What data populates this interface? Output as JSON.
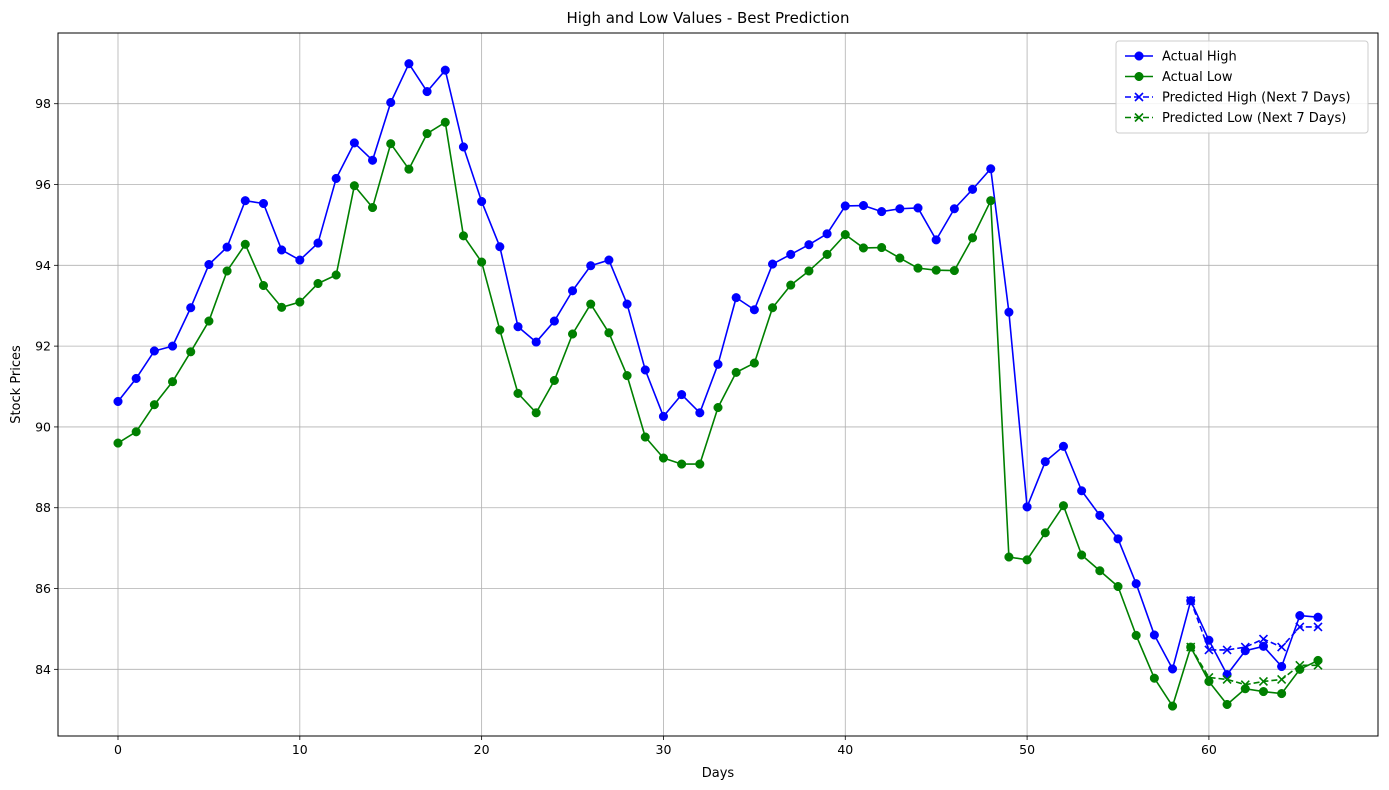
{
  "chart_data": {
    "type": "line",
    "title": "High and Low Values - Best Prediction",
    "xlabel": "Days",
    "ylabel": "Stock Prices",
    "xlim": [
      -3.3,
      69.3
    ],
    "ylim": [
      82.35,
      99.75
    ],
    "xticks": [
      0,
      10,
      20,
      30,
      40,
      50,
      60
    ],
    "yticks": [
      84,
      86,
      88,
      90,
      92,
      94,
      96,
      98
    ],
    "grid": true,
    "legend_position": "top-right",
    "series": [
      {
        "name": "Actual High",
        "color": "#0000ff",
        "marker": "circle",
        "linestyle": "solid",
        "x_start": 0,
        "values": [
          90.63,
          91.2,
          91.88,
          92.0,
          92.95,
          94.02,
          94.45,
          95.6,
          95.53,
          94.38,
          94.13,
          94.55,
          96.15,
          97.03,
          96.6,
          98.03,
          98.99,
          98.3,
          98.83,
          96.93,
          95.58,
          94.46,
          92.48,
          92.1,
          92.62,
          93.37,
          93.99,
          94.13,
          93.04,
          91.41,
          90.26,
          90.8,
          90.35,
          91.55,
          93.2,
          92.9,
          94.03,
          94.27,
          94.51,
          94.78,
          95.47,
          95.48,
          95.33,
          95.4,
          95.42,
          94.63,
          95.4,
          95.88,
          96.39,
          92.84,
          88.02,
          89.14,
          89.52,
          88.42,
          87.81,
          87.23,
          86.12,
          84.85,
          84.01,
          85.7,
          84.72,
          83.87,
          84.46,
          84.57,
          84.07,
          85.33,
          85.29
        ]
      },
      {
        "name": "Actual Low",
        "color": "#008000",
        "marker": "circle",
        "linestyle": "solid",
        "x_start": 0,
        "values": [
          89.6,
          89.88,
          90.55,
          91.12,
          91.86,
          92.62,
          93.86,
          94.52,
          93.5,
          92.96,
          93.09,
          93.55,
          93.76,
          95.97,
          95.43,
          97.01,
          96.38,
          97.26,
          97.54,
          94.73,
          94.08,
          92.4,
          90.83,
          90.35,
          91.15,
          92.3,
          93.04,
          92.33,
          91.27,
          89.75,
          89.23,
          89.08,
          89.08,
          90.48,
          91.35,
          91.58,
          92.95,
          93.51,
          93.86,
          94.27,
          94.76,
          94.43,
          94.44,
          94.18,
          93.93,
          93.88,
          93.87,
          94.68,
          95.6,
          86.78,
          86.71,
          87.38,
          88.05,
          86.83,
          86.44,
          86.05,
          84.84,
          83.78,
          83.09,
          84.55,
          83.7,
          83.13,
          83.52,
          83.45,
          83.4,
          84.0,
          84.22
        ]
      },
      {
        "name": "Predicted High (Next 7 Days)",
        "color": "#0000ff",
        "marker": "x",
        "linestyle": "dashed",
        "x_start": 59,
        "values": [
          85.7,
          84.48,
          84.48,
          84.55,
          84.75,
          84.55,
          85.05,
          85.05
        ]
      },
      {
        "name": "Predicted Low (Next 7 Days)",
        "color": "#008000",
        "marker": "x",
        "linestyle": "dashed",
        "x_start": 59,
        "values": [
          84.55,
          83.8,
          83.75,
          83.62,
          83.7,
          83.75,
          84.1,
          84.1
        ]
      }
    ]
  }
}
